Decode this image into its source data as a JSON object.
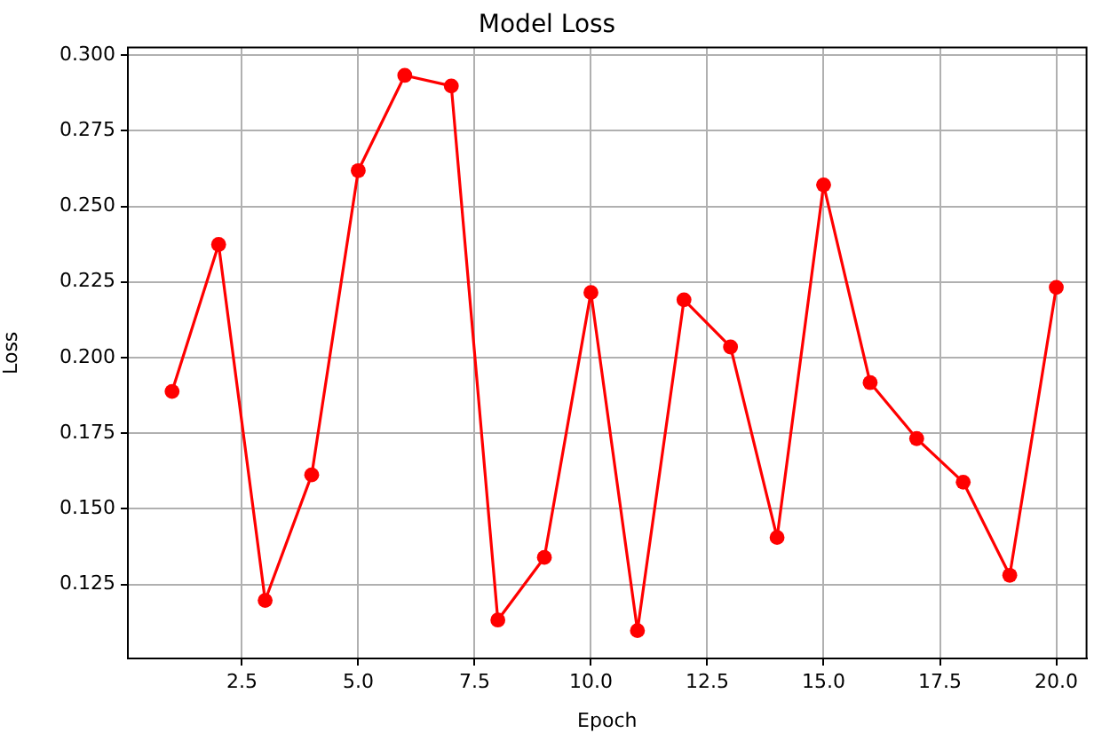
{
  "chart_data": {
    "type": "line",
    "title": "Model Loss",
    "xlabel": "Epoch",
    "ylabel": "Loss",
    "x": [
      1,
      2,
      3,
      4,
      5,
      6,
      7,
      8,
      9,
      10,
      11,
      12,
      13,
      14,
      15,
      16,
      17,
      18,
      19,
      20
    ],
    "series": [
      {
        "color": "#ff0000",
        "values": [
          0.1888,
          0.2374,
          0.1197,
          0.1612,
          0.2618,
          0.2933,
          0.2898,
          0.1132,
          0.1339,
          0.2215,
          0.1097,
          0.2191,
          0.2035,
          0.1405,
          0.2571,
          0.1917,
          0.1732,
          0.1588,
          0.128,
          0.2232
        ]
      }
    ],
    "xlim": [
      0.05,
      20.65
    ],
    "xticks": [
      {
        "value": 2.5,
        "label": "2.5"
      },
      {
        "value": 5,
        "label": "5.0"
      },
      {
        "value": 7.5,
        "label": "7.5"
      },
      {
        "value": 10,
        "label": "10.0"
      },
      {
        "value": 12.5,
        "label": "12.5"
      },
      {
        "value": 15,
        "label": "15.0"
      },
      {
        "value": 17.5,
        "label": "17.5"
      },
      {
        "value": 20,
        "label": "20.0"
      }
    ],
    "ylim": [
      0.1005,
      0.3025
    ],
    "yticks": [
      {
        "value": 0.125,
        "label": "0.125"
      },
      {
        "value": 0.15,
        "label": "0.150"
      },
      {
        "value": 0.175,
        "label": "0.175"
      },
      {
        "value": 0.2,
        "label": "0.200"
      },
      {
        "value": 0.225,
        "label": "0.225"
      },
      {
        "value": 0.25,
        "label": "0.250"
      },
      {
        "value": 0.275,
        "label": "0.275"
      },
      {
        "value": 0.3,
        "label": "0.300"
      }
    ],
    "grid": true,
    "legend": false,
    "marker": "circle",
    "line_style": "solid"
  }
}
